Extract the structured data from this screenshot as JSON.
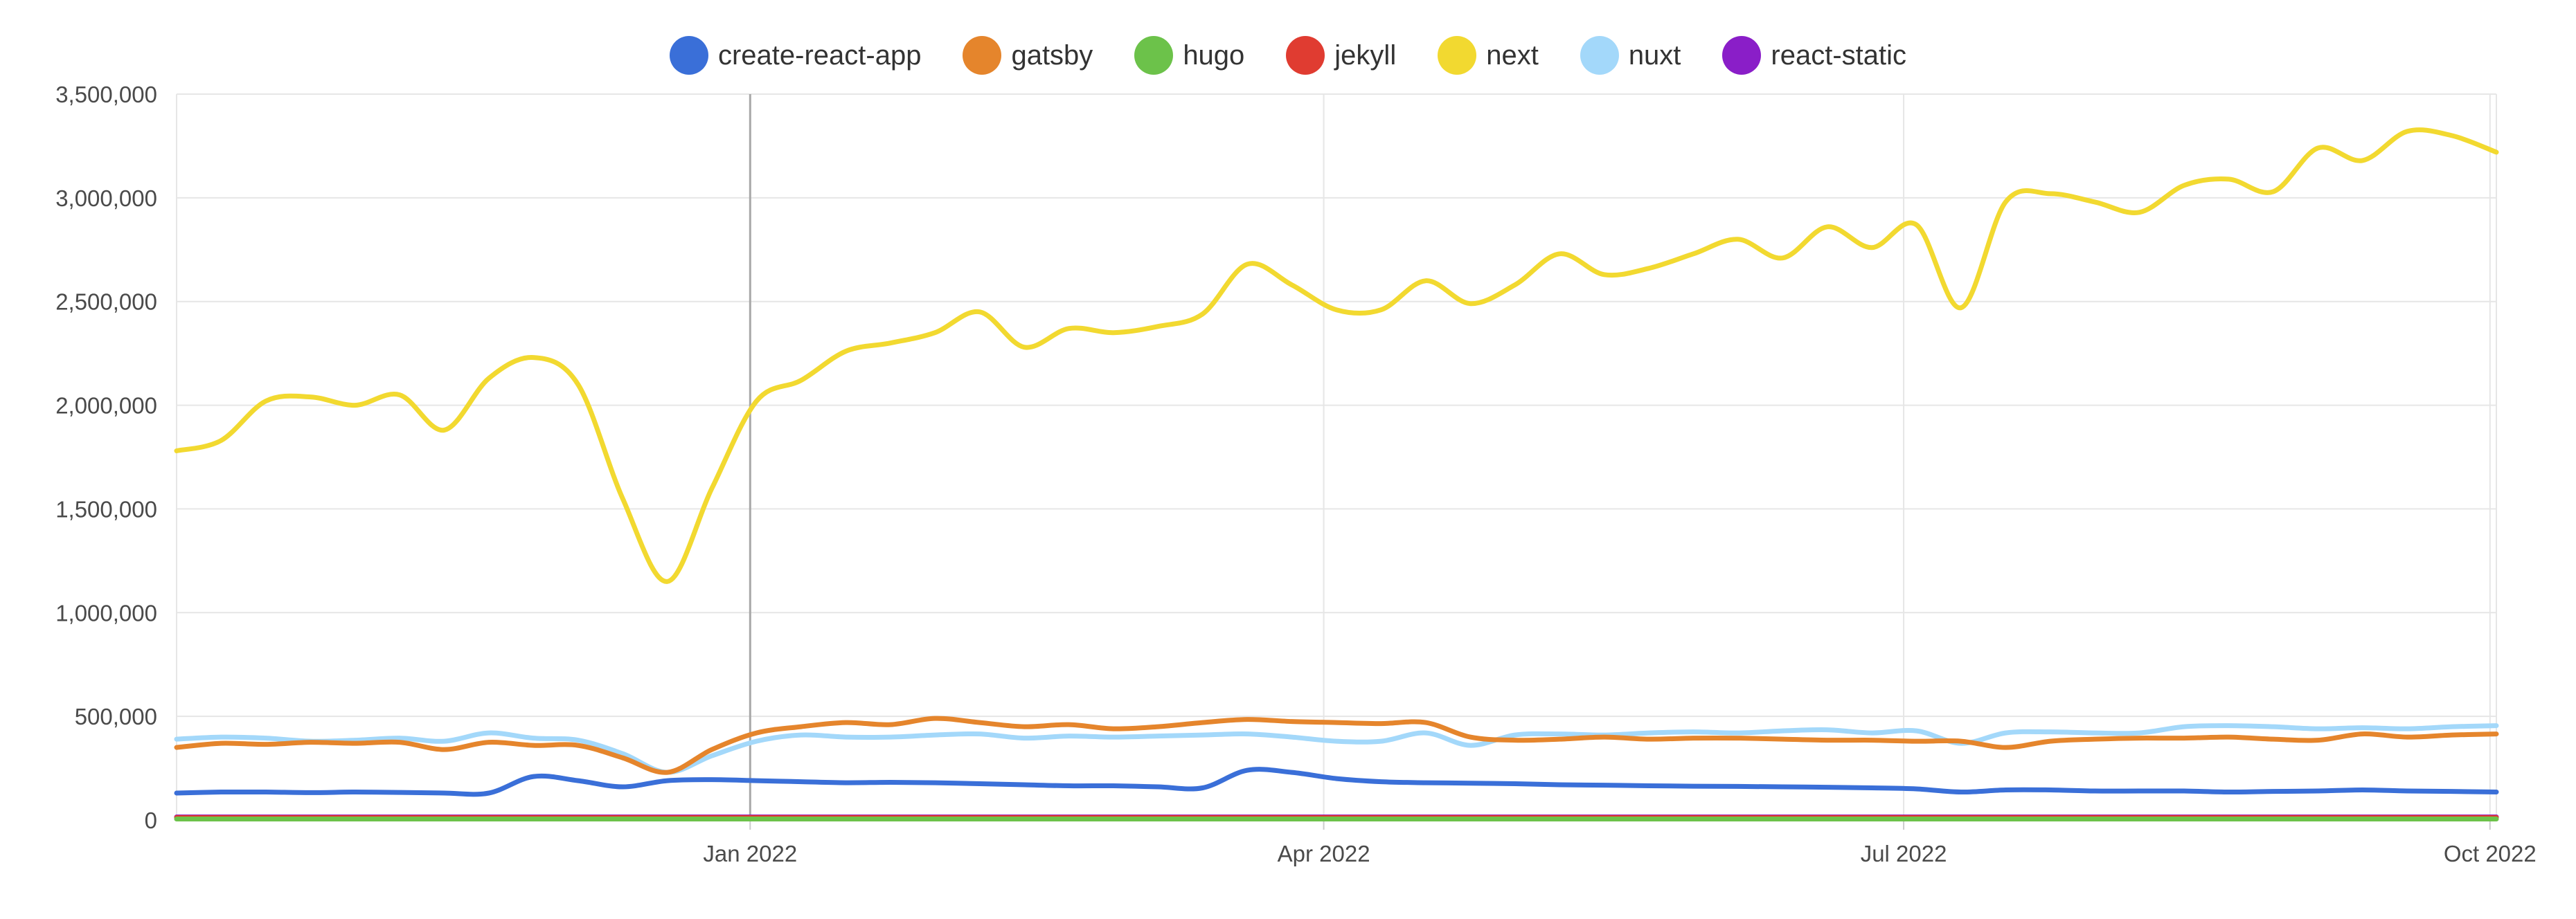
{
  "chart_data": {
    "type": "line",
    "title": "",
    "xlabel": "",
    "ylabel": "",
    "ylim": [
      0,
      3500000
    ],
    "yticks": [
      "0",
      "500,000",
      "1,000,000",
      "1,500,000",
      "2,000,000",
      "2,500,000",
      "3,000,000",
      "3,500,000"
    ],
    "ytick_values": [
      0,
      500000,
      1000000,
      1500000,
      2000000,
      2500000,
      3000000,
      3500000
    ],
    "xlim": [
      "2021-10-03",
      "2022-10-02"
    ],
    "xticks": [
      {
        "label": "Jan 2022",
        "date": "2022-01-01"
      },
      {
        "label": "Apr 2022",
        "date": "2022-04-01"
      },
      {
        "label": "Jul 2022",
        "date": "2022-07-01"
      },
      {
        "label": "Oct 2022",
        "date": "2022-10-01"
      }
    ],
    "grid": true,
    "legend_position": "top-center",
    "x": [
      "2021-10-03",
      "2021-10-10",
      "2021-10-17",
      "2021-10-24",
      "2021-10-31",
      "2021-11-07",
      "2021-11-14",
      "2021-11-21",
      "2021-11-28",
      "2021-12-05",
      "2021-12-12",
      "2021-12-19",
      "2021-12-26",
      "2022-01-02",
      "2022-01-09",
      "2022-01-16",
      "2022-01-23",
      "2022-01-30",
      "2022-02-06",
      "2022-02-13",
      "2022-02-20",
      "2022-02-27",
      "2022-03-06",
      "2022-03-13",
      "2022-03-20",
      "2022-03-27",
      "2022-04-03",
      "2022-04-10",
      "2022-04-17",
      "2022-04-24",
      "2022-05-01",
      "2022-05-08",
      "2022-05-15",
      "2022-05-22",
      "2022-05-29",
      "2022-06-05",
      "2022-06-12",
      "2022-06-19",
      "2022-06-26",
      "2022-07-03",
      "2022-07-10",
      "2022-07-17",
      "2022-07-24",
      "2022-07-31",
      "2022-08-07",
      "2022-08-14",
      "2022-08-21",
      "2022-08-28",
      "2022-09-04",
      "2022-09-11",
      "2022-09-18",
      "2022-09-25",
      "2022-10-02"
    ],
    "series": [
      {
        "name": "create-react-app",
        "color": "#3a6fd8",
        "values": [
          130000,
          135000,
          135000,
          132000,
          135000,
          133000,
          130000,
          130000,
          210000,
          190000,
          160000,
          190000,
          195000,
          190000,
          185000,
          180000,
          182000,
          180000,
          175000,
          170000,
          165000,
          165000,
          160000,
          155000,
          240000,
          230000,
          200000,
          185000,
          180000,
          178000,
          175000,
          170000,
          168000,
          165000,
          163000,
          162000,
          160000,
          158000,
          155000,
          150000,
          135000,
          145000,
          145000,
          140000,
          140000,
          140000,
          135000,
          138000,
          140000,
          145000,
          140000,
          138000,
          135000
        ]
      },
      {
        "name": "gatsby",
        "color": "#e5852c",
        "values": [
          350000,
          370000,
          365000,
          375000,
          370000,
          375000,
          340000,
          375000,
          360000,
          360000,
          300000,
          230000,
          340000,
          420000,
          450000,
          470000,
          460000,
          490000,
          470000,
          450000,
          460000,
          440000,
          450000,
          470000,
          485000,
          475000,
          470000,
          465000,
          470000,
          400000,
          385000,
          390000,
          400000,
          390000,
          395000,
          395000,
          390000,
          385000,
          385000,
          380000,
          380000,
          350000,
          380000,
          390000,
          395000,
          395000,
          400000,
          390000,
          385000,
          415000,
          400000,
          410000,
          415000
        ]
      },
      {
        "name": "hugo",
        "color": "#6cc24a",
        "values": [
          5000,
          5000,
          5000,
          5000,
          5000,
          5000,
          5000,
          5000,
          5000,
          5000,
          5000,
          5000,
          5000,
          5000,
          5000,
          5000,
          5000,
          5000,
          5000,
          5000,
          5000,
          5000,
          5000,
          5000,
          5000,
          5000,
          5000,
          5000,
          5000,
          5000,
          5000,
          5000,
          5000,
          5000,
          5000,
          5000,
          5000,
          5000,
          5000,
          5000,
          5000,
          5000,
          5000,
          5000,
          5000,
          5000,
          5000,
          5000,
          5000,
          5000,
          5000,
          5000,
          5000
        ]
      },
      {
        "name": "jekyll",
        "color": "#e03c31",
        "values": [
          12000,
          12000,
          12000,
          12000,
          12000,
          12000,
          12000,
          12000,
          12000,
          12000,
          12000,
          12000,
          12000,
          12000,
          12000,
          12000,
          12000,
          12000,
          12000,
          12000,
          12000,
          12000,
          12000,
          12000,
          12000,
          12000,
          12000,
          12000,
          12000,
          12000,
          12000,
          12000,
          12000,
          12000,
          12000,
          12000,
          12000,
          12000,
          12000,
          12000,
          12000,
          12000,
          12000,
          12000,
          12000,
          12000,
          12000,
          12000,
          12000,
          12000,
          12000,
          12000,
          12000
        ]
      },
      {
        "name": "next",
        "color": "#f2d930",
        "values": [
          1780000,
          1830000,
          2020000,
          2040000,
          2000000,
          2050000,
          1880000,
          2130000,
          2230000,
          2100000,
          1550000,
          1150000,
          1600000,
          2020000,
          2120000,
          2260000,
          2300000,
          2350000,
          2450000,
          2280000,
          2370000,
          2350000,
          2380000,
          2440000,
          2680000,
          2580000,
          2460000,
          2460000,
          2600000,
          2490000,
          2580000,
          2730000,
          2630000,
          2660000,
          2730000,
          2800000,
          2710000,
          2860000,
          2760000,
          2870000,
          2470000,
          2980000,
          3020000,
          2980000,
          2930000,
          3060000,
          3090000,
          3030000,
          3240000,
          3180000,
          3320000,
          3300000,
          3220000
        ]
      },
      {
        "name": "nuxt",
        "color": "#a3d8fa",
        "values": [
          390000,
          400000,
          395000,
          380000,
          385000,
          395000,
          380000,
          420000,
          395000,
          385000,
          320000,
          230000,
          310000,
          380000,
          410000,
          400000,
          400000,
          410000,
          415000,
          395000,
          405000,
          400000,
          405000,
          410000,
          415000,
          400000,
          380000,
          380000,
          420000,
          360000,
          410000,
          415000,
          410000,
          420000,
          425000,
          420000,
          430000,
          435000,
          420000,
          430000,
          370000,
          420000,
          425000,
          420000,
          420000,
          450000,
          455000,
          450000,
          440000,
          445000,
          440000,
          450000,
          455000
        ]
      },
      {
        "name": "react-static",
        "color": "#8a1ec8",
        "values": [
          15000,
          15000,
          15000,
          15000,
          15000,
          15000,
          15000,
          15000,
          15000,
          15000,
          15000,
          15000,
          15000,
          15000,
          15000,
          15000,
          15000,
          15000,
          15000,
          15000,
          15000,
          15000,
          15000,
          15000,
          15000,
          15000,
          15000,
          15000,
          15000,
          15000,
          15000,
          15000,
          15000,
          15000,
          15000,
          15000,
          15000,
          15000,
          15000,
          15000,
          15000,
          15000,
          15000,
          15000,
          15000,
          15000,
          15000,
          15000,
          15000,
          15000,
          15000,
          15000,
          15000
        ]
      }
    ]
  }
}
